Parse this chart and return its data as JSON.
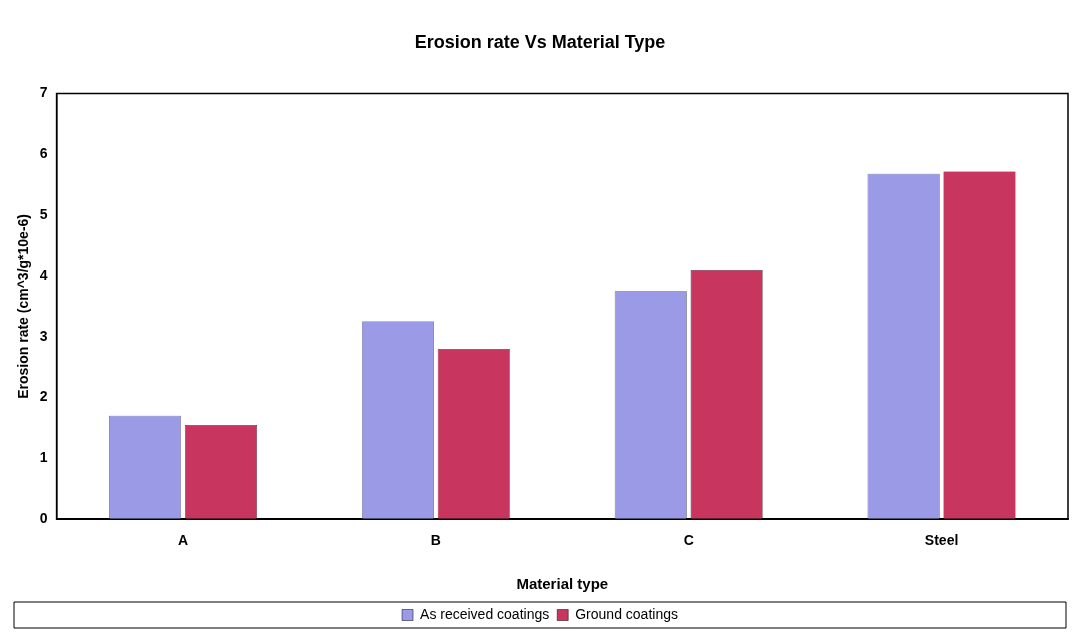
{
  "chart_data": {
    "type": "bar",
    "title": "Erosion rate Vs Material Type",
    "xlabel": "Material type",
    "ylabel": "Erosion rate (cm^3/g*10e-6)",
    "categories": [
      "A",
      "B",
      "C",
      "Steel"
    ],
    "series": [
      {
        "name": "As received coatings",
        "color": "#9a9ae6",
        "values": [
          1.7,
          3.25,
          3.75,
          5.68
        ]
      },
      {
        "name": "Ground coatings",
        "color": "#c8365f",
        "values": [
          1.55,
          2.8,
          4.1,
          5.72
        ]
      }
    ],
    "ylim": [
      0,
      7
    ],
    "yticks": [
      0,
      1,
      2,
      3,
      4,
      5,
      6,
      7
    ],
    "grid": false,
    "legend": "bottom"
  }
}
